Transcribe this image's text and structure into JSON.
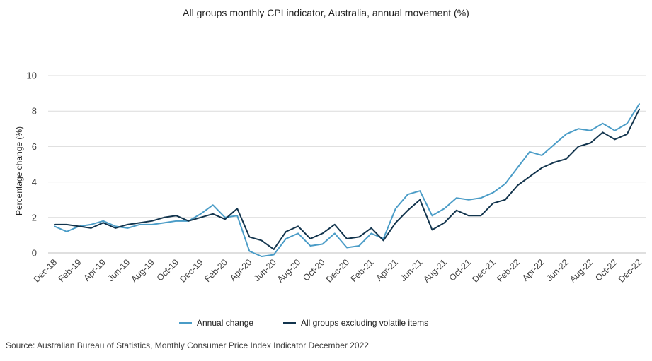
{
  "chart_data": {
    "type": "line",
    "title": "All groups monthly CPI indicator, Australia, annual movement (%)",
    "ylabel": "Percentage change (%)",
    "xlabel": "",
    "ylim": [
      0,
      10
    ],
    "yticks": [
      0,
      2,
      4,
      6,
      8,
      10
    ],
    "grid": true,
    "legend_position": "bottom",
    "x_tick_labels": [
      "Dec-18",
      "Feb-19",
      "Apr-19",
      "Jun-19",
      "Aug-19",
      "Oct-19",
      "Dec-19",
      "Feb-20",
      "Apr-20",
      "Jun-20",
      "Aug-20",
      "Oct-20",
      "Dec-20",
      "Feb-21",
      "Apr-21",
      "Jun-21",
      "Aug-21",
      "Oct-21",
      "Dec-21",
      "Feb-22",
      "Apr-22",
      "Jun-22",
      "Aug-22",
      "Oct-22",
      "Dec-22"
    ],
    "x": [
      "Dec-18",
      "Jan-19",
      "Feb-19",
      "Mar-19",
      "Apr-19",
      "May-19",
      "Jun-19",
      "Jul-19",
      "Aug-19",
      "Sep-19",
      "Oct-19",
      "Nov-19",
      "Dec-19",
      "Jan-20",
      "Feb-20",
      "Mar-20",
      "Apr-20",
      "May-20",
      "Jun-20",
      "Jul-20",
      "Aug-20",
      "Sep-20",
      "Oct-20",
      "Nov-20",
      "Dec-20",
      "Jan-21",
      "Feb-21",
      "Mar-21",
      "Apr-21",
      "May-21",
      "Jun-21",
      "Jul-21",
      "Aug-21",
      "Sep-21",
      "Oct-21",
      "Nov-21",
      "Dec-21",
      "Jan-22",
      "Feb-22",
      "Mar-22",
      "Apr-22",
      "May-22",
      "Jun-22",
      "Jul-22",
      "Aug-22",
      "Sep-22",
      "Oct-22",
      "Nov-22",
      "Dec-22"
    ],
    "series": [
      {
        "name": "Annual change",
        "color": "#4a9cc7",
        "values": [
          1.5,
          1.2,
          1.5,
          1.6,
          1.8,
          1.5,
          1.4,
          1.6,
          1.6,
          1.7,
          1.8,
          1.8,
          2.2,
          2.7,
          2.0,
          2.1,
          0.1,
          -0.2,
          -0.1,
          0.8,
          1.1,
          0.4,
          0.5,
          1.1,
          0.3,
          0.4,
          1.1,
          0.8,
          2.5,
          3.3,
          3.5,
          2.1,
          2.5,
          3.1,
          3.0,
          3.1,
          3.4,
          3.9,
          4.8,
          5.7,
          5.5,
          6.1,
          6.7,
          7.0,
          6.9,
          7.3,
          6.9,
          7.3,
          8.4
        ]
      },
      {
        "name": "All groups excluding volatile items",
        "color": "#12344d",
        "values": [
          1.6,
          1.6,
          1.5,
          1.4,
          1.7,
          1.4,
          1.6,
          1.7,
          1.8,
          2.0,
          2.1,
          1.8,
          2.0,
          2.2,
          1.9,
          2.5,
          0.9,
          0.7,
          0.2,
          1.2,
          1.5,
          0.8,
          1.1,
          1.6,
          0.8,
          0.9,
          1.4,
          0.7,
          1.7,
          2.4,
          3.0,
          1.3,
          1.7,
          2.4,
          2.1,
          2.1,
          2.8,
          3.0,
          3.8,
          4.3,
          4.8,
          5.1,
          5.3,
          6.0,
          6.2,
          6.8,
          6.4,
          6.7,
          8.1
        ]
      }
    ]
  },
  "source": "Source: Australian Bureau of Statistics, Monthly Consumer Price Index Indicator December 2022",
  "colors": {
    "gridline": "#dcdcdc",
    "zero_line": "#bfbfbf"
  }
}
